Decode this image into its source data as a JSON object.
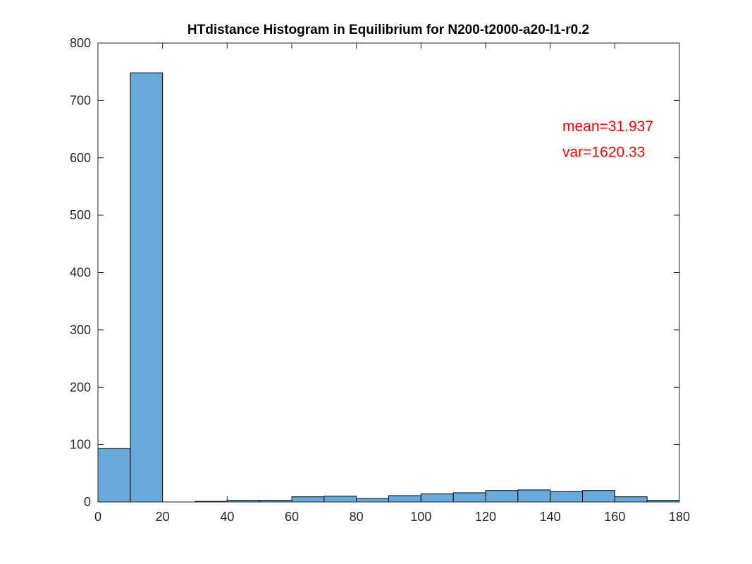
{
  "chart_data": {
    "type": "bar",
    "title": "HTdistance Histogram in Equilibrium for N200-t2000-a20-l1-r0.2",
    "xlabel": "",
    "ylabel": "",
    "xlim": [
      0,
      180
    ],
    "ylim": [
      0,
      800
    ],
    "x_ticks": [
      0,
      20,
      40,
      60,
      80,
      100,
      120,
      140,
      160,
      180
    ],
    "y_ticks": [
      0,
      100,
      200,
      300,
      400,
      500,
      600,
      700,
      800
    ],
    "bin_width": 10,
    "bin_edges": [
      0,
      10,
      20,
      30,
      40,
      50,
      60,
      70,
      80,
      90,
      100,
      110,
      120,
      130,
      140,
      150,
      160,
      170,
      180
    ],
    "values": [
      93,
      748,
      0,
      1,
      3,
      3,
      9,
      10,
      6,
      11,
      14,
      16,
      20,
      21,
      18,
      20,
      9,
      3
    ],
    "grid": false,
    "bar_color": "#67a9d8",
    "edge_color": "#000000",
    "annotations": [
      {
        "text": "mean=31.937",
        "x": 144,
        "y": 655,
        "color": "#ff0000"
      },
      {
        "text": "var=1620.33",
        "x": 144,
        "y": 610,
        "color": "#ff0000"
      }
    ]
  }
}
